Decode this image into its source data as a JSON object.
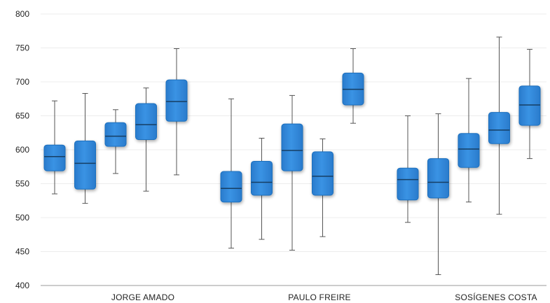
{
  "chart_data": {
    "type": "boxplot",
    "y_ticks": [
      400,
      450,
      500,
      550,
      600,
      650,
      700,
      750,
      800
    ],
    "ylim": [
      400,
      800
    ],
    "grid": true,
    "categories": [
      "JORGE AMADO",
      "PAULO FREIRE",
      "SOSÍGENES COSTA"
    ],
    "colors": {
      "box": "#2f86d8",
      "box_edge": "#1d6fbe",
      "median": "#163e63",
      "whisker": "#555555"
    },
    "groups": [
      {
        "category": "JORGE AMADO",
        "boxes": [
          {
            "min": 535,
            "q1": 569,
            "median": 590,
            "q3": 607,
            "max": 672
          },
          {
            "min": 521,
            "q1": 542,
            "median": 580,
            "q3": 613,
            "max": 683
          },
          {
            "min": 565,
            "q1": 605,
            "median": 620,
            "q3": 640,
            "max": 659
          },
          {
            "min": 539,
            "q1": 615,
            "median": 637,
            "q3": 668,
            "max": 691
          },
          {
            "min": 563,
            "q1": 642,
            "median": 671,
            "q3": 703,
            "max": 749
          }
        ]
      },
      {
        "category": "PAULO FREIRE",
        "boxes": [
          {
            "min": 455,
            "q1": 523,
            "median": 543,
            "q3": 568,
            "max": 675
          },
          {
            "min": 468,
            "q1": 533,
            "median": 552,
            "q3": 583,
            "max": 617
          },
          {
            "min": 452,
            "q1": 569,
            "median": 599,
            "q3": 638,
            "max": 680
          },
          {
            "min": 472,
            "q1": 533,
            "median": 561,
            "q3": 597,
            "max": 616
          },
          {
            "min": 639,
            "q1": 666,
            "median": 689,
            "q3": 713,
            "max": 749
          }
        ]
      },
      {
        "category": "SOSÍGENES COSTA",
        "boxes": [
          {
            "min": 493,
            "q1": 526,
            "median": 556,
            "q3": 573,
            "max": 650
          },
          {
            "min": 416,
            "q1": 529,
            "median": 552,
            "q3": 587,
            "max": 653
          },
          {
            "min": 523,
            "q1": 574,
            "median": 601,
            "q3": 624,
            "max": 705
          },
          {
            "min": 505,
            "q1": 609,
            "median": 629,
            "q3": 655,
            "max": 766
          },
          {
            "min": 587,
            "q1": 636,
            "median": 666,
            "q3": 694,
            "max": 748
          }
        ]
      }
    ]
  }
}
